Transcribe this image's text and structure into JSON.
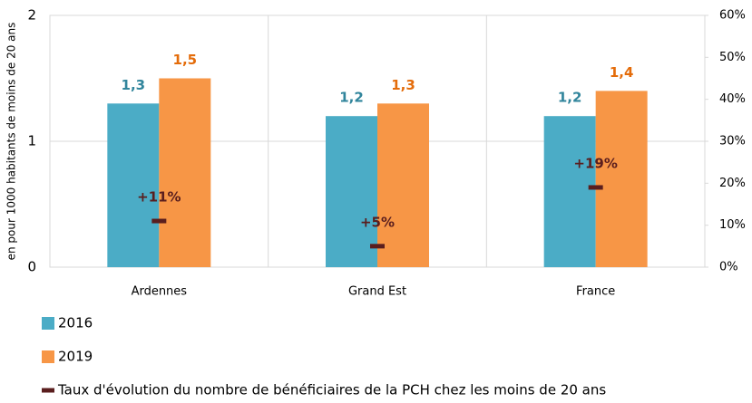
{
  "chart_data": {
    "type": "bar",
    "y_axis_label": "en pour 1000 habitants de moins de 20 ans",
    "categories": [
      "Ardennes",
      "Grand Est",
      "France"
    ],
    "series": [
      {
        "name": "2016",
        "color": "#4bacc6",
        "label_color": "#31859c",
        "values": [
          1.3,
          1.2,
          1.2
        ],
        "value_labels": [
          "1,3",
          "1,2",
          "1,2"
        ]
      },
      {
        "name": "2019",
        "color": "#f79646",
        "label_color": "#e46c0a",
        "values": [
          1.5,
          1.3,
          1.4
        ],
        "value_labels": [
          "1,5",
          "1,3",
          "1,4"
        ]
      },
      {
        "name": "Taux d'évolution du nombre de bénéficiaires de la PCH chez les moins de 20 ans",
        "color": "#5a1e1e",
        "axis": "y2",
        "values": [
          11,
          5,
          19
        ],
        "value_labels": [
          "+11%",
          "+5%",
          "+19%"
        ]
      }
    ],
    "ylim": [
      0,
      2
    ],
    "yticks": [
      0,
      1,
      2
    ],
    "y2lim": [
      0,
      60
    ],
    "y2ticks": [
      {
        "value": 0,
        "label": "0%"
      },
      {
        "value": 10,
        "label": "10%"
      },
      {
        "value": 20,
        "label": "20%"
      },
      {
        "value": 30,
        "label": "30%"
      },
      {
        "value": 40,
        "label": "40%"
      },
      {
        "value": 50,
        "label": "50%"
      },
      {
        "value": 60,
        "label": "60%"
      }
    ],
    "grid": true
  }
}
